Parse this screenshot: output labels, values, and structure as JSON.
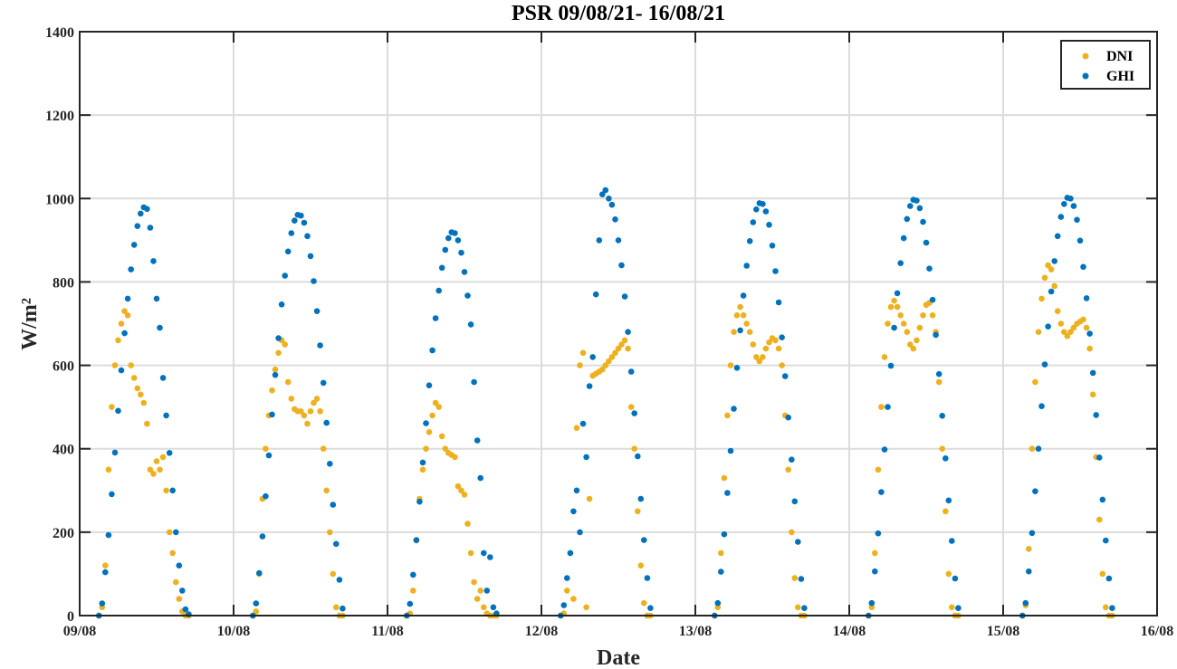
{
  "chart_data": {
    "type": "scatter",
    "title": "PSR 09/08/21- 16/08/21",
    "xlabel": "Date",
    "ylabel": "W/m²",
    "ylim": [
      0,
      1400
    ],
    "xlim": [
      "09/08",
      "16/08"
    ],
    "grid": true,
    "legend_position": "top-right",
    "xticks": [
      "09/08",
      "10/08",
      "11/08",
      "12/08",
      "13/08",
      "14/08",
      "15/08",
      "16/08"
    ],
    "yticks": [
      "0",
      "200",
      "400",
      "600",
      "800",
      "1000",
      "1200",
      "1400"
    ],
    "times": [
      "03:00",
      "03:30",
      "04:00",
      "04:30",
      "05:00",
      "05:30",
      "06:00",
      "06:30",
      "07:00",
      "07:30",
      "08:00",
      "08:30",
      "09:00",
      "09:30",
      "10:00",
      "10:30",
      "11:00",
      "11:30",
      "12:00",
      "12:30",
      "13:00",
      "13:30",
      "14:00",
      "14:30",
      "15:00",
      "15:30",
      "16:00",
      "16:30",
      "17:00"
    ],
    "series": [
      {
        "name": "DNI",
        "color": "#EDB120",
        "days": [
          {
            "date": "09/08",
            "values": [
              0,
              20,
              120,
              350,
              500,
              600,
              660,
              700,
              730,
              720,
              600,
              570,
              545,
              530,
              510,
              460,
              350,
              340,
              370,
              350,
              380,
              300,
              200,
              150,
              80,
              40,
              10,
              0,
              0
            ]
          },
          {
            "date": "10/08",
            "values": [
              0,
              10,
              100,
              280,
              400,
              480,
              540,
              590,
              630,
              660,
              650,
              560,
              520,
              495,
              490,
              490,
              480,
              460,
              490,
              510,
              520,
              490,
              400,
              300,
              200,
              100,
              20,
              0,
              0
            ]
          },
          {
            "date": "11/08",
            "values": [
              0,
              5,
              60,
              180,
              280,
              350,
              400,
              440,
              480,
              510,
              500,
              430,
              400,
              390,
              385,
              380,
              310,
              300,
              290,
              220,
              150,
              80,
              40,
              60,
              20,
              5,
              0,
              0,
              0
            ]
          },
          {
            "date": "12/08",
            "values": [
              0,
              5,
              60,
              150,
              40,
              450,
              600,
              630,
              20,
              280,
              575,
              580,
              585,
              590,
              600,
              610,
              620,
              630,
              640,
              650,
              660,
              640,
              500,
              400,
              250,
              120,
              30,
              0,
              0
            ]
          },
          {
            "date": "13/08",
            "values": [
              0,
              20,
              150,
              330,
              480,
              600,
              680,
              720,
              740,
              720,
              700,
              680,
              650,
              620,
              610,
              620,
              640,
              655,
              665,
              660,
              640,
              600,
              480,
              350,
              200,
              90,
              20,
              0,
              0
            ]
          },
          {
            "date": "14/08",
            "values": [
              0,
              20,
              150,
              350,
              500,
              620,
              700,
              740,
              755,
              740,
              720,
              700,
              680,
              650,
              640,
              660,
              690,
              720,
              745,
              750,
              720,
              680,
              560,
              400,
              250,
              100,
              20,
              0,
              0
            ]
          },
          {
            "date": "15/08",
            "values": [
              0,
              25,
              160,
              400,
              560,
              680,
              760,
              810,
              840,
              830,
              790,
              730,
              700,
              680,
              670,
              680,
              690,
              700,
              705,
              710,
              690,
              640,
              530,
              380,
              230,
              100,
              20,
              0,
              0
            ]
          }
        ]
      },
      {
        "name": "GHI",
        "color": "#0072BD",
        "days": [
          {
            "date": "09/08",
            "values": [
              0,
              29,
              104,
              193,
              291,
              391,
              491,
              588,
              677,
              760,
              830,
              889,
              934,
              964,
              979,
              975,
              930,
              850,
              760,
              690,
              570,
              480,
              390,
              300,
              200,
              120,
              60,
              15,
              3
            ]
          },
          {
            "date": "10/08",
            "values": [
              0,
              29,
              102,
              190,
              286,
              384,
              482,
              577,
              665,
              746,
              815,
              873,
              917,
              947,
              961,
              959,
              942,
              910,
              862,
              802,
              730,
              648,
              558,
              462,
              364,
              266,
              172,
              86,
              17
            ]
          },
          {
            "date": "11/08",
            "values": [
              0,
              28,
              98,
              181,
              273,
              367,
              461,
              552,
              636,
              713,
              779,
              834,
              877,
              905,
              919,
              917,
              900,
              870,
              824,
              767,
              698,
              560,
              420,
              330,
              150,
              60,
              140,
              20,
              5
            ]
          },
          {
            "date": "12/08",
            "values": [
              0,
              25,
              90,
              150,
              250,
              300,
              200,
              460,
              380,
              550,
              620,
              770,
              900,
              1010,
              1020,
              1000,
              985,
              950,
              900,
              840,
              765,
              680,
              585,
              485,
              382,
              280,
              181,
              90,
              18
            ]
          },
          {
            "date": "13/08",
            "values": [
              0,
              30,
              105,
              195,
              294,
              395,
              496,
              594,
              684,
              767,
              839,
              898,
              943,
              974,
              989,
              987,
              969,
              937,
              887,
              826,
              751,
              667,
              574,
              475,
              374,
              274,
              177,
              88,
              18
            ]
          },
          {
            "date": "14/08",
            "values": [
              0,
              30,
              106,
              197,
              296,
              398,
              500,
              599,
              690,
              773,
              845,
              905,
              951,
              982,
              997,
              995,
              977,
              944,
              894,
              832,
              757,
              673,
              579,
              479,
              377,
              276,
              179,
              89,
              18
            ]
          },
          {
            "date": "15/08",
            "values": [
              0,
              30,
              106,
              198,
              298,
              400,
              502,
              602,
              693,
              777,
              850,
              910,
              956,
              987,
              1002,
              1000,
              982,
              949,
              899,
              836,
              761,
              676,
              582,
              481,
              379,
              278,
              180,
              89,
              18
            ]
          }
        ]
      }
    ]
  }
}
